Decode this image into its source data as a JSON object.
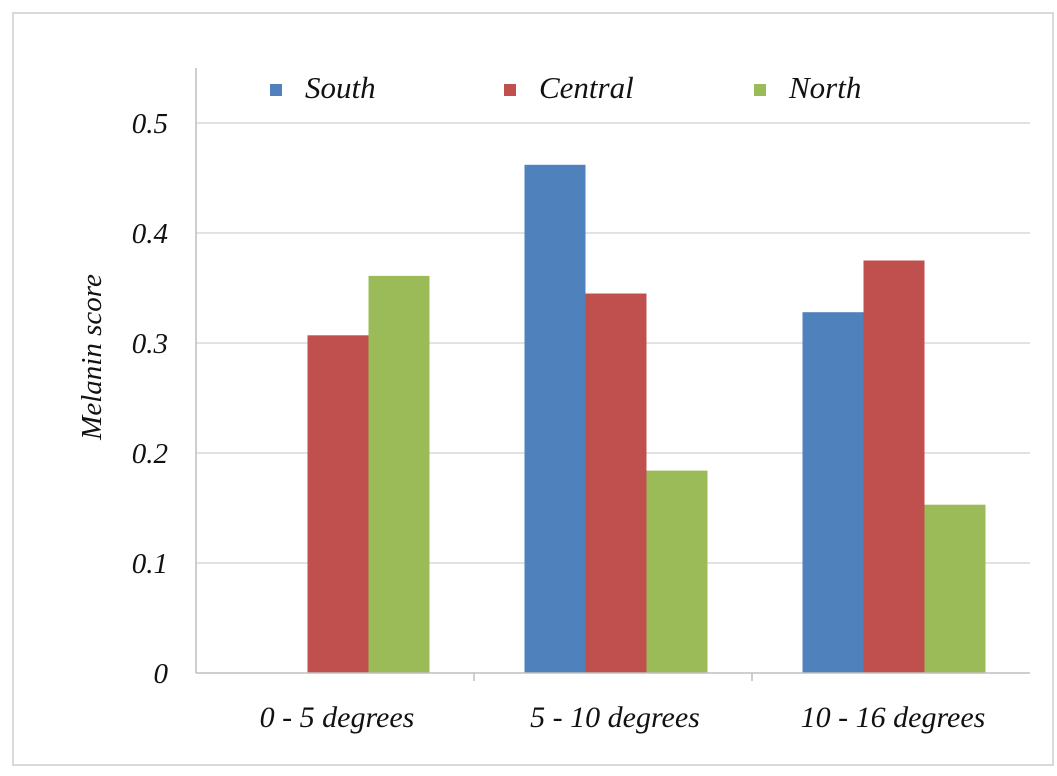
{
  "chart_data": {
    "type": "bar",
    "title": "",
    "xlabel": "",
    "ylabel": "Melanin score",
    "categories": [
      "0 - 5 degrees",
      "5 - 10 degrees",
      "10 - 16 degrees"
    ],
    "series": [
      {
        "name": "South",
        "color": "#4f81bd",
        "values": [
          0.0,
          0.462,
          0.328
        ]
      },
      {
        "name": "Central",
        "color": "#c0504d",
        "values": [
          0.307,
          0.345,
          0.375
        ]
      },
      {
        "name": "North",
        "color": "#9bbb59",
        "values": [
          0.361,
          0.184,
          0.153
        ]
      }
    ],
    "ylim": [
      0,
      0.5
    ],
    "yticks": [
      0,
      0.1,
      0.2,
      0.3,
      0.4,
      0.5
    ],
    "ytick_labels": [
      "0",
      "0.1",
      "0.2",
      "0.3",
      "0.4",
      "0.5"
    ],
    "grid": true,
    "legend_position": "top"
  }
}
